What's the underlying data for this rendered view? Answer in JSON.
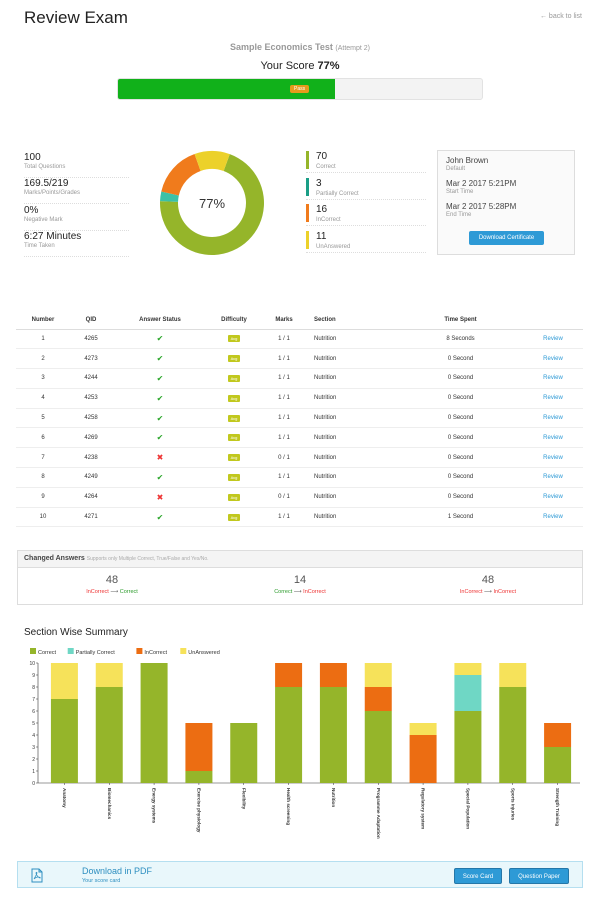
{
  "header": {
    "title": "Review Exam",
    "back_link": "← back to list"
  },
  "exam": {
    "name": "Sample Economics Test",
    "attempt": "(Attempt 2)",
    "score_label": "Your Score",
    "score_value": "77%",
    "score_fraction": 0.77,
    "pass_label": "Pass"
  },
  "stats": [
    {
      "value": "100",
      "label": "Total Questions"
    },
    {
      "value": "169.5/219",
      "label": "Marks/Points/Grades"
    },
    {
      "value": "0%",
      "label": "Negative Mark"
    },
    {
      "value": "6:27 Minutes",
      "label": "Time Taken"
    }
  ],
  "donut": {
    "center_label": "77%",
    "segments": [
      {
        "name": "Correct",
        "value": 70,
        "color": "#95b52a"
      },
      {
        "name": "Partially Correct",
        "value": 3,
        "color": "#3cc1a6"
      },
      {
        "name": "InCorrect",
        "value": 16,
        "color": "#f07b1c"
      },
      {
        "name": "UnAnswered",
        "value": 11,
        "color": "#ecd12a"
      }
    ]
  },
  "breakdown": [
    {
      "value": "70",
      "label": "Correct",
      "color": "#95b52a"
    },
    {
      "value": "3",
      "label": "Partially Correct",
      "color": "#1a9e86"
    },
    {
      "value": "16",
      "label": "InCorrect",
      "color": "#f07b1c"
    },
    {
      "value": "11",
      "label": "UnAnswered",
      "color": "#ecd12a"
    }
  ],
  "user": {
    "name": "John Brown",
    "group": "Default",
    "start": "Mar 2 2017 5:21PM",
    "start_label": "Start Time",
    "end": "Mar 2 2017 5:28PM",
    "end_label": "End Time",
    "cert_button": "Download Certificate"
  },
  "table": {
    "headers": [
      "Number",
      "QID",
      "Answer Status",
      "Difficulty",
      "Marks",
      "Section",
      "Time Spent",
      ""
    ],
    "rows": [
      {
        "num": "1",
        "qid": "4265",
        "status": "correct",
        "difficulty": "Avg",
        "marks": "1 / 1",
        "section": "Nutrition",
        "time": "8 Seconds",
        "action": "Review"
      },
      {
        "num": "2",
        "qid": "4273",
        "status": "correct",
        "difficulty": "Avg",
        "marks": "1 / 1",
        "section": "Nutrition",
        "time": "0 Second",
        "action": "Review"
      },
      {
        "num": "3",
        "qid": "4244",
        "status": "correct",
        "difficulty": "Avg",
        "marks": "1 / 1",
        "section": "Nutrition",
        "time": "0 Second",
        "action": "Review"
      },
      {
        "num": "4",
        "qid": "4253",
        "status": "correct",
        "difficulty": "Avg",
        "marks": "1 / 1",
        "section": "Nutrition",
        "time": "0 Second",
        "action": "Review"
      },
      {
        "num": "5",
        "qid": "4258",
        "status": "correct",
        "difficulty": "Avg",
        "marks": "1 / 1",
        "section": "Nutrition",
        "time": "0 Second",
        "action": "Review"
      },
      {
        "num": "6",
        "qid": "4269",
        "status": "correct",
        "difficulty": "Avg",
        "marks": "1 / 1",
        "section": "Nutrition",
        "time": "0 Second",
        "action": "Review"
      },
      {
        "num": "7",
        "qid": "4238",
        "status": "incorrect",
        "difficulty": "Avg",
        "marks": "0 / 1",
        "section": "Nutrition",
        "time": "0 Second",
        "action": "Review"
      },
      {
        "num": "8",
        "qid": "4249",
        "status": "correct",
        "difficulty": "Avg",
        "marks": "1 / 1",
        "section": "Nutrition",
        "time": "0 Second",
        "action": "Review"
      },
      {
        "num": "9",
        "qid": "4264",
        "status": "incorrect",
        "difficulty": "Avg",
        "marks": "0 / 1",
        "section": "Nutrition",
        "time": "0 Second",
        "action": "Review"
      },
      {
        "num": "10",
        "qid": "4271",
        "status": "correct",
        "difficulty": "Avg",
        "marks": "1 / 1",
        "section": "Nutrition",
        "time": "1 Second",
        "action": "Review"
      }
    ]
  },
  "changed": {
    "title": "Changed Answers",
    "note": "Supports only Multiple Correct, True/False and Yes/No.",
    "items": [
      {
        "count": "48",
        "from": "InCorrect",
        "to": "Correct"
      },
      {
        "count": "14",
        "from": "Correct",
        "to": "InCorrect"
      },
      {
        "count": "48",
        "from": "InCorrect",
        "to": "InCorrect"
      }
    ]
  },
  "section_summary": {
    "title": "Section Wise Summary"
  },
  "chart_data": {
    "type": "bar",
    "stacked": true,
    "categories": [
      "Anatomy",
      "Biomechanics",
      "Energy systems",
      "Exercise physiology",
      "Flexibility",
      "Health screening",
      "Nutrition",
      "Programme Adaptation",
      "Regulatory system",
      "Special Population",
      "Sports Injuries",
      "Strength Training"
    ],
    "series": [
      {
        "name": "Correct",
        "color": "#95b52a",
        "values": [
          7,
          8,
          10,
          1,
          5,
          8,
          8,
          6,
          0,
          6,
          8,
          3
        ]
      },
      {
        "name": "Partially Correct",
        "color": "#6fd7c5",
        "values": [
          0,
          0,
          0,
          0,
          0,
          0,
          0,
          0,
          0,
          3,
          0,
          0
        ]
      },
      {
        "name": "InCorrect",
        "color": "#ec6d12",
        "values": [
          0,
          0,
          0,
          4,
          0,
          2,
          2,
          2,
          4,
          0,
          0,
          2
        ]
      },
      {
        "name": "UnAnswered",
        "color": "#f6e25a",
        "values": [
          3,
          2,
          0,
          0,
          0,
          0,
          0,
          2,
          1,
          1,
          2,
          0
        ]
      }
    ],
    "yticks": [
      "0",
      "1",
      "2",
      "3",
      "4",
      "5",
      "6",
      "7",
      "8",
      "9",
      "10"
    ],
    "ylim": [
      0,
      10
    ],
    "legend": "top-left"
  },
  "pdf": {
    "title": "Download in PDF",
    "subtitle": "Your score card",
    "btn_score": "Score Card",
    "btn_paper": "Question Paper"
  }
}
